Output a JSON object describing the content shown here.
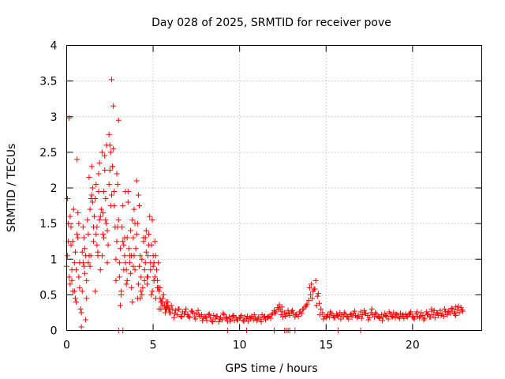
{
  "chart_data": {
    "type": "scatter",
    "title": "Day 028 of 2025, SRMTID for receiver pove",
    "xlabel": "GPS time / hours",
    "ylabel": "SRMTID / TECUs",
    "xlim": [
      0,
      24
    ],
    "ylim": [
      0,
      4
    ],
    "xticks": [
      0,
      5,
      10,
      15,
      20
    ],
    "xtick_labels": [
      "0",
      "5",
      "10",
      "15",
      "20"
    ],
    "yticks": [
      0,
      0.5,
      1,
      1.5,
      2,
      2.5,
      3,
      3.5,
      4
    ],
    "ytick_labels": [
      "0",
      "0.5",
      "1",
      "1.5",
      "2",
      "2.5",
      "3",
      "3.5",
      "4"
    ],
    "grid": true,
    "marker": "+",
    "series": [
      {
        "name": "SRMTID",
        "color": "#ff0000",
        "x": [
          0.0,
          0.05,
          0.1,
          0.15,
          0.2,
          0.25,
          0.3,
          0.35,
          0.4,
          0.45,
          0.5,
          0.55,
          0.6,
          0.65,
          0.7,
          0.75,
          0.8,
          0.85,
          0.9,
          0.95,
          1.0,
          1.05,
          1.1,
          1.15,
          1.2,
          1.25,
          1.3,
          1.35,
          1.4,
          1.45,
          1.5,
          1.55,
          1.6,
          1.65,
          1.7,
          1.75,
          1.8,
          1.85,
          1.9,
          1.95,
          2.0,
          2.05,
          2.1,
          2.15,
          2.2,
          2.25,
          2.3,
          2.35,
          2.4,
          2.45,
          2.5,
          2.55,
          2.6,
          2.65,
          2.7,
          2.75,
          2.8,
          2.85,
          2.9,
          2.95,
          3.0,
          3.05,
          3.1,
          3.15,
          3.2,
          3.25,
          3.3,
          3.35,
          3.4,
          3.45,
          3.5,
          3.55,
          3.6,
          3.65,
          3.7,
          3.75,
          3.8,
          3.85,
          3.9,
          3.95,
          4.0,
          4.05,
          4.1,
          4.15,
          4.2,
          4.25,
          4.3,
          4.35,
          4.4,
          4.45,
          4.5,
          4.55,
          4.6,
          4.65,
          4.7,
          4.75,
          4.8,
          4.85,
          4.9,
          4.95,
          5.0,
          5.05,
          5.1,
          5.15,
          5.2,
          5.25,
          5.3,
          5.35,
          5.4,
          5.45,
          5.5,
          5.55,
          5.6,
          5.65,
          5.7,
          5.75,
          5.8,
          5.85,
          5.9,
          5.95,
          0.05,
          0.15,
          0.25,
          0.35,
          0.45,
          0.55,
          0.65,
          0.75,
          0.85,
          0.95,
          1.05,
          1.15,
          1.25,
          1.35,
          1.45,
          1.55,
          1.65,
          1.75,
          1.85,
          1.95,
          2.05,
          2.15,
          2.25,
          2.35,
          2.45,
          2.55,
          2.65,
          2.75,
          2.85,
          2.95,
          3.05,
          3.15,
          3.25,
          3.35,
          3.45,
          3.55,
          3.65,
          3.75,
          3.85,
          3.95,
          4.05,
          4.15,
          4.25,
          4.35,
          4.45,
          4.55,
          4.65,
          4.75,
          4.85,
          4.95,
          5.05,
          5.15,
          5.25,
          5.35,
          5.45,
          5.55,
          5.65,
          5.75,
          5.85,
          5.95,
          0.1,
          0.3,
          0.5,
          0.7,
          0.9,
          1.1,
          1.3,
          1.5,
          1.7,
          1.9,
          2.1,
          2.3,
          2.5,
          2.7,
          2.9,
          3.1,
          3.3,
          3.5,
          3.7,
          3.9,
          4.1,
          4.3,
          4.5,
          4.7,
          4.9,
          5.1,
          5.3,
          5.5,
          5.7,
          5.9,
          0.2,
          0.6,
          1.0,
          1.4,
          1.8,
          2.2,
          2.6,
          3.0,
          3.4,
          3.8,
          4.2,
          4.6,
          5.0,
          5.4,
          5.8,
          6.0,
          6.1,
          6.2,
          6.3,
          6.4,
          6.5,
          6.6,
          6.7,
          6.8,
          6.9,
          7.0,
          7.1,
          7.2,
          7.3,
          7.4,
          7.5,
          7.6,
          7.7,
          7.8,
          7.9,
          8.0,
          8.1,
          8.2,
          8.3,
          8.4,
          8.5,
          8.6,
          8.7,
          8.8,
          8.9,
          9.0,
          9.1,
          9.2,
          9.3,
          9.4,
          9.5,
          9.6,
          9.7,
          9.8,
          9.9,
          10.0,
          10.1,
          10.2,
          10.3,
          10.4,
          10.5,
          10.6,
          10.7,
          10.8,
          10.9,
          11.0,
          11.1,
          11.2,
          11.3,
          11.4,
          11.5,
          11.6,
          11.7,
          11.8,
          11.9,
          12.0,
          12.1,
          12.2,
          12.3,
          12.4,
          12.5,
          12.6,
          12.7,
          12.8,
          12.9,
          13.0,
          13.1,
          13.2,
          13.3,
          13.4,
          13.5,
          13.6,
          13.7,
          13.8,
          13.9,
          14.0,
          14.1,
          14.2,
          14.3,
          14.4,
          14.5,
          14.6,
          14.7,
          14.8,
          14.9,
          15.0,
          15.1,
          15.2,
          15.3,
          15.4,
          15.5,
          15.6,
          15.7,
          15.8,
          15.9,
          16.0,
          16.1,
          16.2,
          16.3,
          16.4,
          16.5,
          16.6,
          16.7,
          16.8,
          16.9,
          17.0,
          17.1,
          17.2,
          17.3,
          17.4,
          17.5,
          17.6,
          17.7,
          17.8,
          17.9,
          18.0,
          18.1,
          18.2,
          18.3,
          18.4,
          18.5,
          18.6,
          18.7,
          18.8,
          18.9,
          19.0,
          19.1,
          19.2,
          19.3,
          19.4,
          19.5,
          19.6,
          19.7,
          19.8,
          19.9,
          20.0,
          20.1,
          20.2,
          20.3,
          20.4,
          20.5,
          20.6,
          20.7,
          20.8,
          20.9,
          21.0,
          21.1,
          21.2,
          21.3,
          21.4,
          21.5,
          21.6,
          21.7,
          21.8,
          21.9,
          22.0,
          22.1,
          22.2,
          22.3,
          22.4,
          22.5,
          22.6,
          22.7,
          22.8,
          22.9,
          6.05,
          6.25,
          6.45,
          6.65,
          6.85,
          7.05,
          7.25,
          7.45,
          7.65,
          7.85,
          8.05,
          8.25,
          8.45,
          8.65,
          8.85,
          9.05,
          9.25,
          9.45,
          9.65,
          9.85,
          10.05,
          10.25,
          10.45,
          10.65,
          10.85,
          11.05,
          11.25,
          11.45,
          11.65,
          11.85,
          12.05,
          12.25,
          12.45,
          12.65,
          12.85,
          13.05,
          13.25,
          13.45,
          13.65,
          13.85,
          14.05,
          14.25,
          14.45,
          14.65,
          14.85,
          15.05,
          15.25,
          15.45,
          15.65,
          15.85,
          16.05,
          16.25,
          16.45,
          16.65,
          16.85,
          17.05,
          17.25,
          17.45,
          17.65,
          17.85,
          18.05,
          18.25,
          18.45,
          18.65,
          18.85,
          19.05,
          19.25,
          19.45,
          19.65,
          19.85,
          20.05,
          20.25,
          20.45,
          20.65,
          20.85,
          21.05,
          21.25,
          21.45,
          21.65,
          21.85,
          22.05,
          22.25,
          22.45,
          22.65,
          22.85,
          14.15,
          14.35,
          14.55,
          12.35,
          12.45,
          21.1,
          22.5,
          3.0,
          3.25,
          9.3,
          10.4,
          12.0,
          12.6,
          12.7,
          12.8,
          12.9,
          13.2,
          15.7,
          17.0
        ],
        "y": [
          0.9,
          1.85,
          1.5,
          2.98,
          0.65,
          1.2,
          0.85,
          0.55,
          1.7,
          0.95,
          1.1,
          0.4,
          2.4,
          1.3,
          0.75,
          0.95,
          0.3,
          0.05,
          0.55,
          1.45,
          1.3,
          0.8,
          1.05,
          0.7,
          1.55,
          0.95,
          2.15,
          1.7,
          1.05,
          2.3,
          1.8,
          1.25,
          1.6,
          1.85,
          2.05,
          1.45,
          1.05,
          2.2,
          1.55,
          0.85,
          1.7,
          2.5,
          1.35,
          1.95,
          2.25,
          1.85,
          2.6,
          1.4,
          1.2,
          2.75,
          2.25,
          1.75,
          3.52,
          2.3,
          3.15,
          1.75,
          1.45,
          0.7,
          1.25,
          2.05,
          1.55,
          0.95,
          1.15,
          0.55,
          1.45,
          1.25,
          0.85,
          1.05,
          1.95,
          0.65,
          1.3,
          1.8,
          1.15,
          0.95,
          0.8,
          1.05,
          0.4,
          1.3,
          1.05,
          0.85,
          1.15,
          2.1,
          1.5,
          1.9,
          0.9,
          1.05,
          0.75,
          0.5,
          0.6,
          1.25,
          0.85,
          1.3,
          1.1,
          0.75,
          1.05,
          1.35,
          1.6,
          0.95,
          1.2,
          1.55,
          0.9,
          0.95,
          0.75,
          1.05,
          0.85,
          0.7,
          0.95,
          0.55,
          0.45,
          0.3,
          0.4,
          0.35,
          0.5,
          0.35,
          0.25,
          0.4,
          0.3,
          0.35,
          0.3,
          0.25,
          1.05,
          0.75,
          1.45,
          1.25,
          0.55,
          0.85,
          1.65,
          0.6,
          0.25,
          0.95,
          1.15,
          0.45,
          1.35,
          0.9,
          1.9,
          1.45,
          0.55,
          1.2,
          1.95,
          1.6,
          1.05,
          1.3,
          1.55,
          0.95,
          2.05,
          2.5,
          2.3,
          1.95,
          1.0,
          1.45,
          0.75,
          0.5,
          1.75,
          1.3,
          0.85,
          1.95,
          1.05,
          0.6,
          0.9,
          1.5,
          1.35,
          0.65,
          0.45,
          1.0,
          1.3,
          0.95,
          0.65,
          1.2,
          0.85,
          0.55,
          0.7,
          0.45,
          0.6,
          0.3,
          0.4,
          0.45,
          0.35,
          0.3,
          0.4,
          0.3,
          1.25,
          0.7,
          0.45,
          1.5,
          1.1,
          0.15,
          1.05,
          2.0,
          1.35,
          2.35,
          1.65,
          1.5,
          2.6,
          2.55,
          2.2,
          0.35,
          1.2,
          0.7,
          1.4,
          1.7,
          0.45,
          0.55,
          0.7,
          0.75,
          0.5,
          1.25,
          0.6,
          0.4,
          0.3,
          0.3,
          1.6,
          1.35,
          0.9,
          1.85,
          1.1,
          2.45,
          1.9,
          2.95,
          0.95,
          1.55,
          1.75,
          1.4,
          1.05,
          0.6,
          0.35,
          0.25,
          0.3,
          0.18,
          0.28,
          0.22,
          0.3,
          0.2,
          0.26,
          0.23,
          0.3,
          0.22,
          0.18,
          0.27,
          0.25,
          0.19,
          0.24,
          0.28,
          0.2,
          0.22,
          0.17,
          0.2,
          0.14,
          0.22,
          0.18,
          0.13,
          0.21,
          0.16,
          0.2,
          0.12,
          0.18,
          0.15,
          0.22,
          0.17,
          0.13,
          0.19,
          0.16,
          0.2,
          0.14,
          0.18,
          0.15,
          0.17,
          0.21,
          0.14,
          0.19,
          0.16,
          0.13,
          0.18,
          0.2,
          0.15,
          0.17,
          0.14,
          0.19,
          0.16,
          0.22,
          0.18,
          0.15,
          0.19,
          0.2,
          0.17,
          0.24,
          0.28,
          0.26,
          0.32,
          0.36,
          0.22,
          0.19,
          0.25,
          0.23,
          0.28,
          0.21,
          0.26,
          0.24,
          0.19,
          0.22,
          0.2,
          0.26,
          0.24,
          0.3,
          0.33,
          0.37,
          0.42,
          0.5,
          0.45,
          0.58,
          0.7,
          0.48,
          0.38,
          0.3,
          0.25,
          0.2,
          0.18,
          0.22,
          0.19,
          0.24,
          0.21,
          0.18,
          0.23,
          0.2,
          0.25,
          0.22,
          0.19,
          0.23,
          0.2,
          0.16,
          0.22,
          0.19,
          0.24,
          0.21,
          0.18,
          0.2,
          0.26,
          0.22,
          0.28,
          0.24,
          0.21,
          0.18,
          0.25,
          0.22,
          0.19,
          0.23,
          0.2,
          0.17,
          0.22,
          0.19,
          0.24,
          0.2,
          0.16,
          0.23,
          0.2,
          0.25,
          0.18,
          0.22,
          0.19,
          0.24,
          0.2,
          0.17,
          0.23,
          0.19,
          0.22,
          0.26,
          0.2,
          0.16,
          0.23,
          0.2,
          0.18,
          0.25,
          0.21,
          0.17,
          0.26,
          0.22,
          0.19,
          0.27,
          0.22,
          0.18,
          0.25,
          0.21,
          0.28,
          0.23,
          0.2,
          0.26,
          0.22,
          0.27,
          0.24,
          0.3,
          0.26,
          0.21,
          0.29,
          0.25,
          0.32,
          0.27,
          0.35,
          0.24,
          0.3,
          0.19,
          0.26,
          0.2,
          0.27,
          0.16,
          0.22,
          0.14,
          0.18,
          0.23,
          0.12,
          0.2,
          0.16,
          0.24,
          0.18,
          0.13,
          0.21,
          0.15,
          0.19,
          0.13,
          0.2,
          0.17,
          0.22,
          0.16,
          0.12,
          0.2,
          0.18,
          0.22,
          0.24,
          0.3,
          0.27,
          0.2,
          0.24,
          0.28,
          0.22,
          0.26,
          0.3,
          0.35,
          0.6,
          0.55,
          0.35,
          0.22,
          0.16,
          0.2,
          0.26,
          0.18,
          0.21,
          0.16,
          0.25,
          0.19,
          0.23,
          0.27,
          0.2,
          0.17,
          0.24,
          0.15,
          0.3,
          0.25,
          0.18,
          0.14,
          0.21,
          0.26,
          0.19,
          0.23,
          0.17,
          0.22,
          0.2,
          0.24,
          0.18,
          0.26,
          0.2,
          0.15,
          0.23,
          0.19,
          0.28,
          0.24,
          0.21,
          0.3,
          0.26,
          0.31,
          0.23,
          0.34,
          0.29,
          0.65,
          0.58,
          0.52,
          0.3,
          0.33,
          0.3,
          0.33,
          0.0,
          0.0,
          0.0,
          0.0,
          0.0,
          0.0,
          0.0,
          0.0,
          0.0,
          0.0,
          0.0,
          0.0
        ]
      }
    ]
  }
}
